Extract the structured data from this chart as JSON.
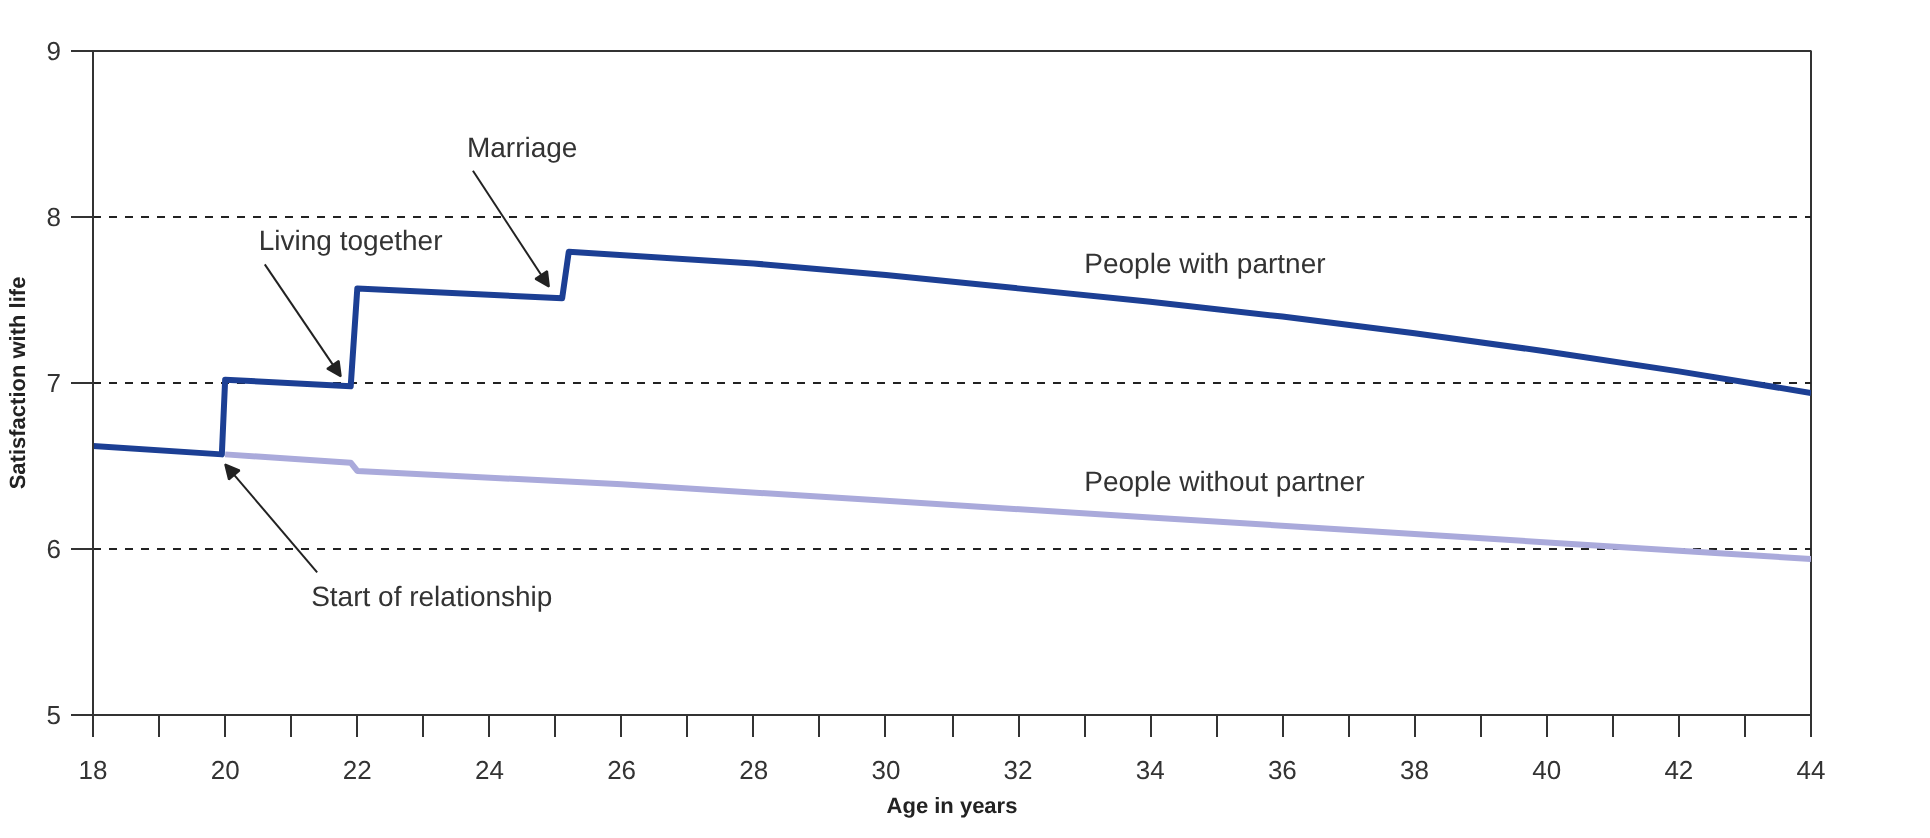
{
  "chart_data": {
    "type": "line",
    "xlabel": "Age in years",
    "ylabel": "Satisfaction with life",
    "xlim": [
      18,
      44
    ],
    "ylim": [
      5,
      9
    ],
    "xticks": [
      18,
      {
        "value": 19,
        "label": null
      },
      20,
      {
        "value": 21,
        "label": null
      },
      22,
      {
        "value": 23,
        "label": null
      },
      24,
      {
        "value": 25,
        "label": null
      },
      26,
      {
        "value": 27,
        "label": null
      },
      28,
      {
        "value": 29,
        "label": null
      },
      30,
      {
        "value": 31,
        "label": null
      },
      32,
      {
        "value": 33,
        "label": null
      },
      34,
      {
        "value": 35,
        "label": null
      },
      36,
      {
        "value": 37,
        "label": null
      },
      38,
      {
        "value": 39,
        "label": null
      },
      40,
      {
        "value": 41,
        "label": null
      },
      42,
      {
        "value": 43,
        "label": null
      },
      44
    ],
    "yticks": [
      5,
      6,
      7,
      8,
      9
    ],
    "grid": "y",
    "legend": false,
    "line_style": "solid",
    "series": [
      {
        "name": "People without partner",
        "color": "#aaaadb",
        "x": [
          20,
          21.9,
          22,
          26,
          30,
          34,
          38,
          42,
          44
        ],
        "values": [
          6.57,
          6.52,
          6.47,
          6.39,
          6.29,
          6.19,
          6.09,
          5.99,
          5.94
        ]
      },
      {
        "name": "People with partner",
        "color": "#1c3f94",
        "x": [
          18,
          19.95,
          20,
          21.9,
          22,
          25.1,
          25.2,
          28,
          30,
          32,
          34,
          36,
          38,
          40,
          42,
          44
        ],
        "values": [
          6.62,
          6.57,
          7.02,
          6.98,
          7.57,
          7.51,
          7.79,
          7.72,
          7.65,
          7.57,
          7.49,
          7.4,
          7.3,
          7.19,
          7.07,
          6.94
        ]
      }
    ],
    "annotations": [
      {
        "text": "Marriage",
        "x": 24.9,
        "y": 7.58
      },
      {
        "text": "Living together",
        "x": 21.75,
        "y": 7.04
      },
      {
        "text": "Start of relationship",
        "x": 20.0,
        "y": 6.51
      }
    ]
  }
}
